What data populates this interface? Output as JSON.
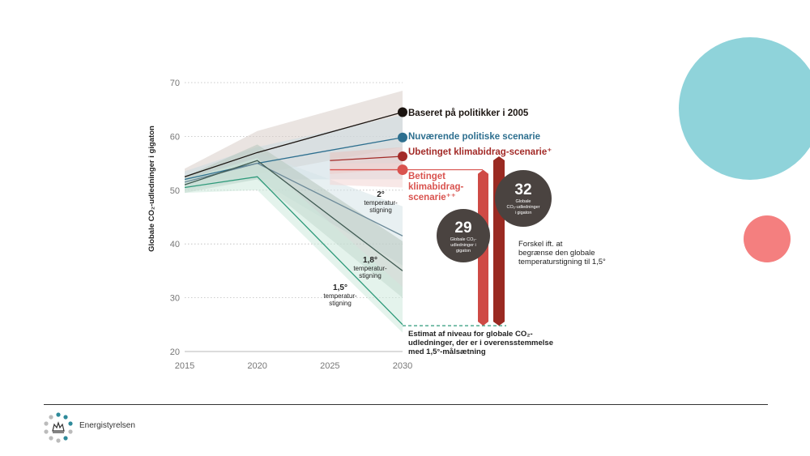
{
  "colors": {
    "black_series": "#1b1410",
    "blue_series": "#2d6f8f",
    "red_series": "#a32b28",
    "light_red_series": "#d9534f",
    "green_series": "#2e9a7a",
    "dark_green_series": "#3f5a52",
    "grid": "#bbbbbb",
    "gray_circle": "#4a4340",
    "bar_light": "#cf4a45",
    "bar_dark": "#9a2a22"
  },
  "footer": {
    "brand": "Energistyrelsen"
  },
  "chart_data": {
    "type": "line",
    "ylabel": "Globale CO₂-udledninger i gigaton",
    "xlabel": "",
    "xlim": [
      2015,
      2030
    ],
    "ylim": [
      20,
      70
    ],
    "x_ticks": [
      "2015",
      "2020",
      "2025",
      "2030"
    ],
    "y_ticks": [
      "20",
      "30",
      "40",
      "50",
      "60",
      "70"
    ],
    "series": [
      {
        "name": "Baseret på politikker i 2005",
        "x": [
          2015,
          2020,
          2030
        ],
        "values": [
          52.5,
          57,
          64.5
        ],
        "band_low": [
          51,
          53,
          58
        ],
        "band_high": [
          54,
          61,
          68.5
        ],
        "color": "#1b1410",
        "band_color": "#d9cdc9"
      },
      {
        "name": "Nuværende politiske scenarie",
        "x": [
          2015,
          2020,
          2030
        ],
        "values": [
          52,
          55,
          59.8
        ],
        "band_low": [
          50.5,
          52,
          52
        ],
        "band_high": [
          53.5,
          58,
          64
        ],
        "color": "#2d6f8f",
        "band_color": "#cbdbe2"
      },
      {
        "name": "2° temperaturstigning",
        "x": [
          2015,
          2020,
          2030
        ],
        "values": [
          51.5,
          55,
          41.5
        ],
        "band_low": [
          50,
          52,
          36
        ],
        "band_high": [
          53,
          57,
          47
        ],
        "color": "#6c8a99",
        "band_color": "#d6e3e8"
      },
      {
        "name": "1,8° temperaturstigning",
        "x": [
          2015,
          2020,
          2030
        ],
        "values": [
          51,
          55.5,
          35
        ],
        "band_low": [
          49.5,
          52,
          30
        ],
        "band_high": [
          52.5,
          58.5,
          40.5
        ],
        "color": "#3f5a52",
        "band_color": "#b6c6bd"
      },
      {
        "name": "1,5° temperaturstigning",
        "x": [
          2015,
          2020,
          2030
        ],
        "values": [
          50.5,
          52.5,
          25
        ],
        "band_low": [
          49.5,
          50,
          23.5
        ],
        "band_high": [
          52,
          56,
          32
        ],
        "color": "#2e9a7a",
        "band_color": "#cde9dd"
      },
      {
        "name": "Ubetinget klimabidrag-scenarie⁺",
        "x": [
          2025,
          2030
        ],
        "values": [
          55.5,
          56.3
        ],
        "band_low": [
          53,
          54
        ],
        "band_high": [
          57,
          58
        ],
        "color": "#a32b28",
        "band_color": "#e8c3c0"
      },
      {
        "name": "Betinget klimabidrag-scenarie⁺⁺",
        "x": [
          2025,
          2030
        ],
        "values": [
          53.8,
          53.8
        ],
        "band_low": [
          51,
          50.5
        ],
        "band_high": [
          55,
          55
        ],
        "color": "#d9534f",
        "band_color": "#f3d6d3"
      }
    ],
    "estimate_level": 24.8,
    "labels": {
      "baseret": "Baseret på politikker i 2005",
      "nuvaerende": "Nuværende politiske scenarie",
      "ubetinget": "Ubetinget klimabidrag-scenarie⁺",
      "betinget_1": "Betinget",
      "betinget_2": "klimabidrag-",
      "betinget_3": "scenarie⁺⁺",
      "deg2_1": "2°",
      "deg2_2": "temperatur-",
      "deg2_3": "stigning",
      "deg18_1": "1,8°",
      "deg18_2": "temperatur-",
      "deg18_3": "stigning",
      "deg15_1": "1,5°",
      "deg15_2": "temperatur-",
      "deg15_3": "stigning",
      "estimate_1": "Estimat af niveau for globale CO₂-",
      "estimate_2": "udledninger, der er i overensstemmelse",
      "estimate_3": "med 1,5°-målsætning",
      "forskel_1": "Forskel ift. at",
      "forskel_2": "begrænse den globale",
      "forskel_3": "temperaturstigning til 1,5°"
    },
    "gaps": [
      {
        "value": "29",
        "line1": "Globale CO₂-",
        "line2": "udledninger i",
        "line3": "gigaton",
        "from": 53.8,
        "to": 24.8
      },
      {
        "value": "32",
        "line1": "Globale",
        "line2": "CO₂-udledninger",
        "line3": "i gigaton",
        "from": 56.3,
        "to": 24.8
      }
    ]
  }
}
